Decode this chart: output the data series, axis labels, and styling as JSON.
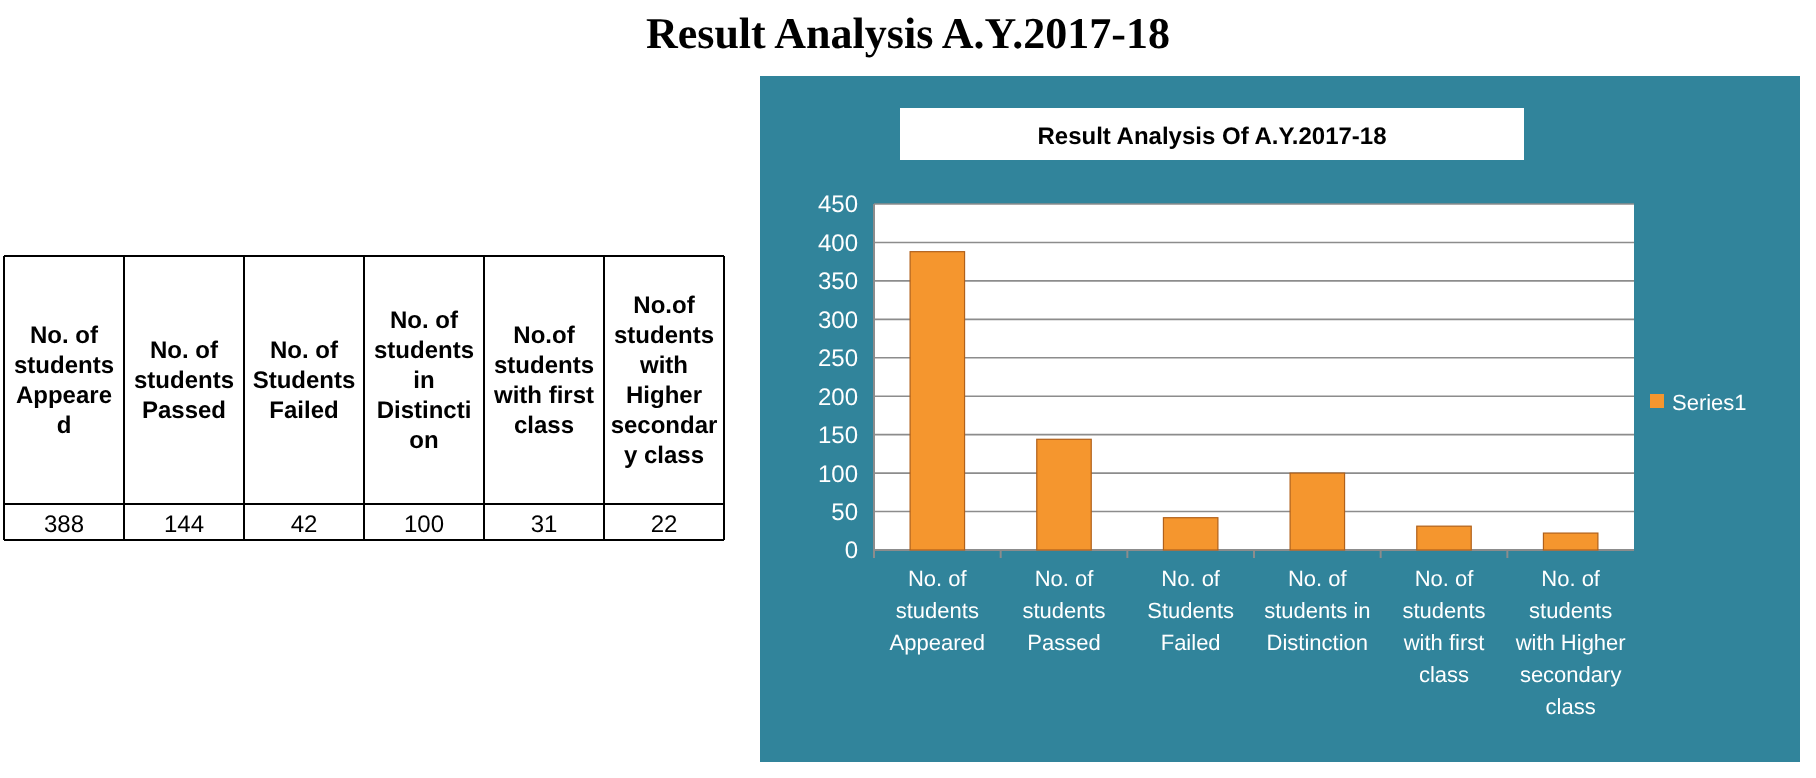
{
  "chart_data": [
    {
      "type": "other",
      "categories": [
        "No. of students Appeared",
        "No. of students Passed",
        "No. of Students Failed",
        "No. of students in Distinction",
        "No.of students with first class",
        "No.of students with Higher secondary class"
      ],
      "values": [
        388,
        144,
        42,
        100,
        31,
        22
      ],
      "data_labels": true
    },
    {
      "type": "bar",
      "title": "Result Analysis Of A.Y.2017-18",
      "annotations": [
        "Result Analysis A.Y.2017-18"
      ],
      "categories": [
        "No. of students Appeared",
        "No. of students Passed",
        "No. of Students Failed",
        "No. of students in Distinction",
        "No. of students with first class",
        "No. of students with Higher secondary class"
      ],
      "series": [
        {
          "name": "Series1",
          "color": "#f5962e",
          "values": [
            388,
            144,
            42,
            100,
            31,
            22
          ]
        }
      ],
      "ylim": [
        0,
        450
      ],
      "yticks": [
        0,
        50,
        100,
        150,
        200,
        250,
        300,
        350,
        400,
        450
      ],
      "grid": "y",
      "legend": "right"
    }
  ]
}
